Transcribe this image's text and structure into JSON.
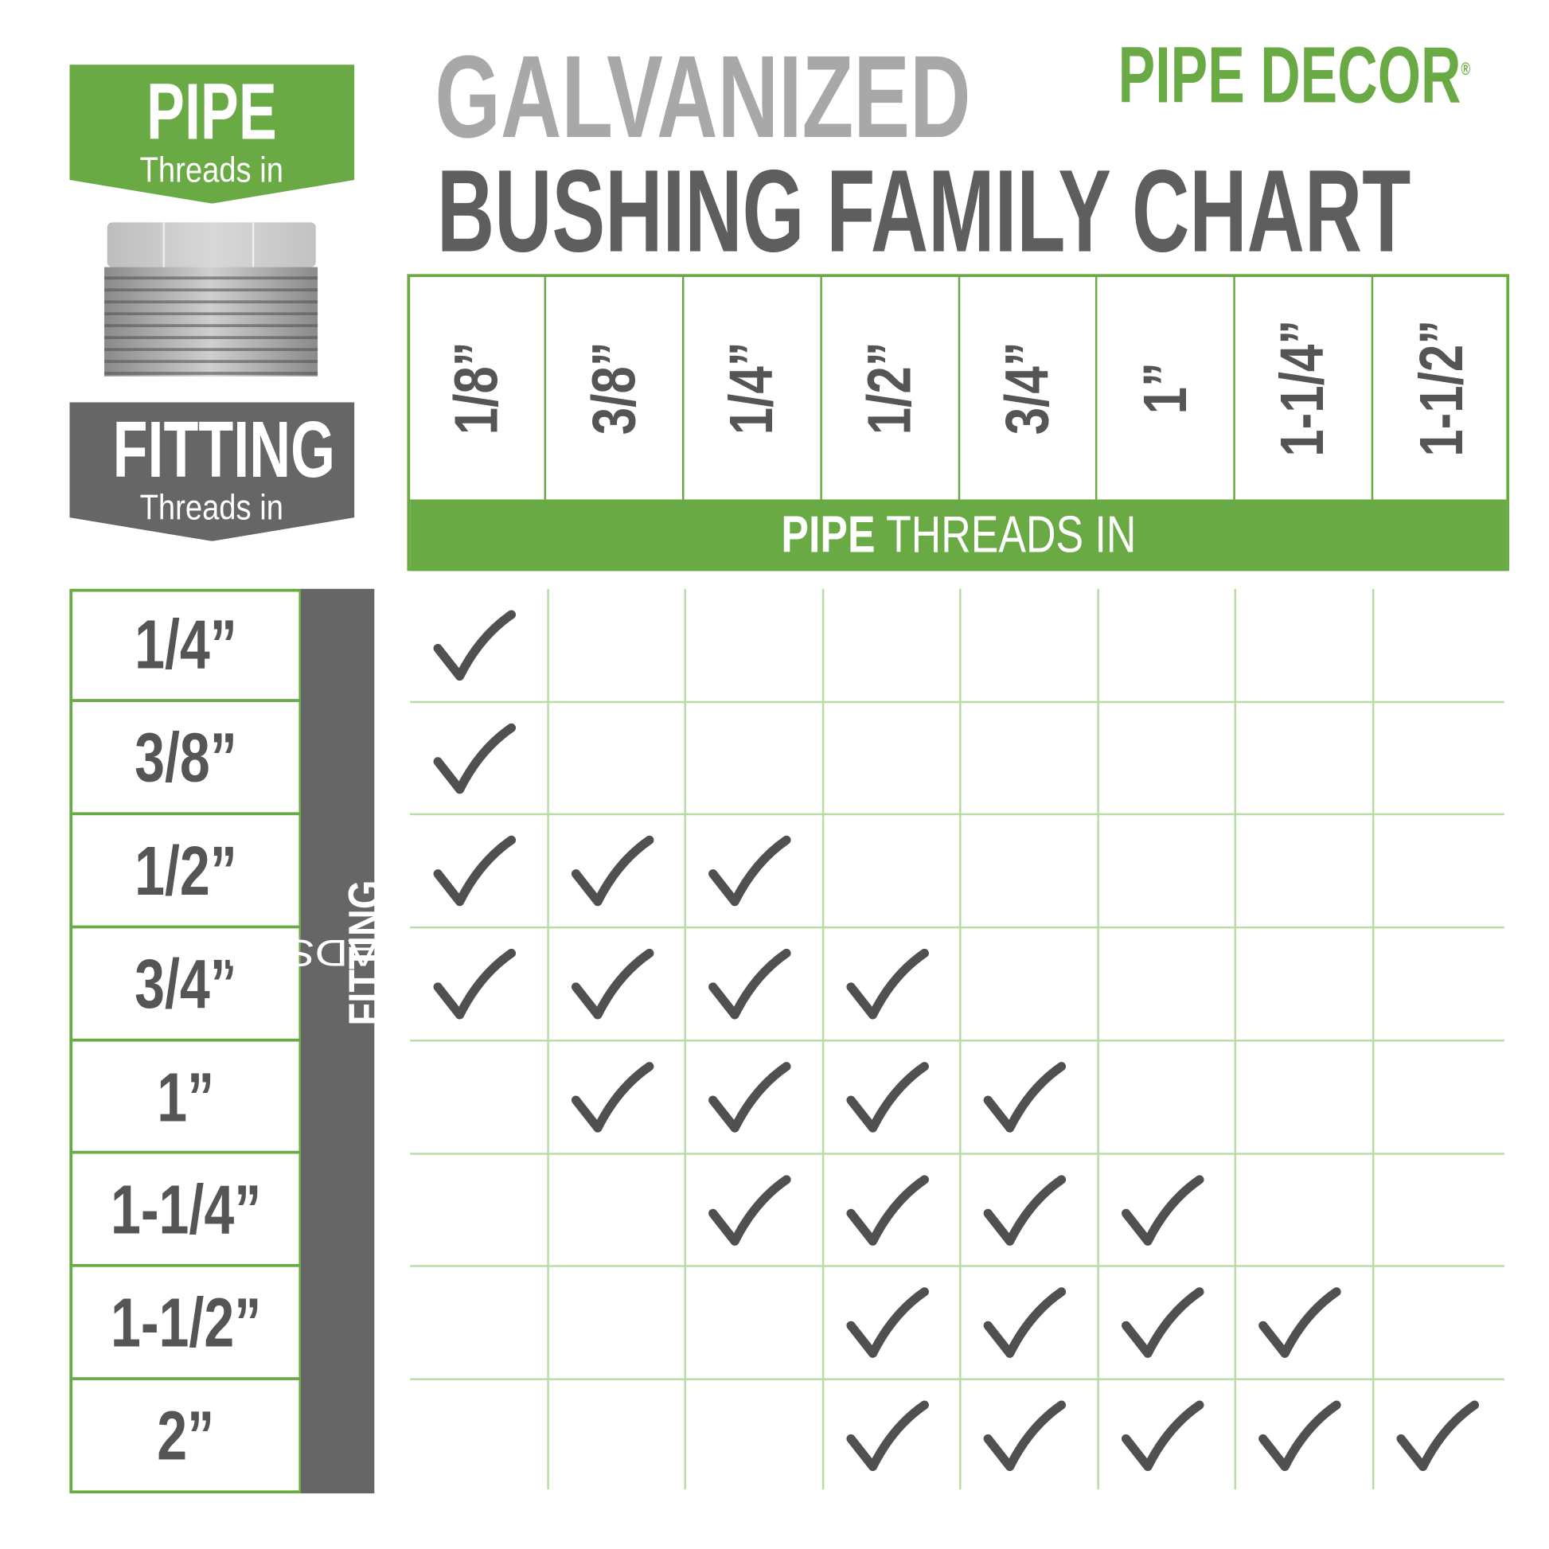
{
  "colors": {
    "green": "#6aaa44",
    "dark_gray": "#5e5e5e",
    "light_gray": "#a8a8a8",
    "grid": "#b9dca6",
    "check": "#505050"
  },
  "legend": {
    "pipe": {
      "title": "PIPE",
      "subtitle": "Threads in"
    },
    "fitting": {
      "title": "FITTING",
      "subtitle": "Threads in"
    },
    "image": "galvanized-bushing-photo"
  },
  "title": {
    "line1": "GALVANIZED",
    "line2": "BUSHING FAMILY CHART"
  },
  "logo": {
    "text": "PIPE DECOR",
    "registered": "®"
  },
  "chart_data": {
    "type": "table",
    "title": "GALVANIZED BUSHING FAMILY CHART",
    "column_axis_label": {
      "bold": "PIPE",
      "rest": " THREADS IN"
    },
    "row_axis_label": {
      "bold": "FITTING",
      "rest": " THREADS IN"
    },
    "columns": [
      "1/8”",
      "3/8”",
      "1/4”",
      "1/2”",
      "3/4”",
      "1”",
      "1-1/4”",
      "1-1/2”"
    ],
    "rows": [
      "1/4”",
      "3/8”",
      "1/2”",
      "3/4”",
      "1”",
      "1-1/4”",
      "1-1/2”",
      "2”"
    ],
    "checks": [
      [
        1,
        0,
        0,
        0,
        0,
        0,
        0,
        0
      ],
      [
        1,
        0,
        0,
        0,
        0,
        0,
        0,
        0
      ],
      [
        1,
        1,
        1,
        0,
        0,
        0,
        0,
        0
      ],
      [
        1,
        1,
        1,
        1,
        0,
        0,
        0,
        0
      ],
      [
        0,
        1,
        1,
        1,
        1,
        0,
        0,
        0
      ],
      [
        0,
        0,
        1,
        1,
        1,
        1,
        0,
        0
      ],
      [
        0,
        0,
        0,
        1,
        1,
        1,
        1,
        0
      ],
      [
        0,
        0,
        0,
        1,
        1,
        1,
        1,
        1
      ]
    ]
  }
}
